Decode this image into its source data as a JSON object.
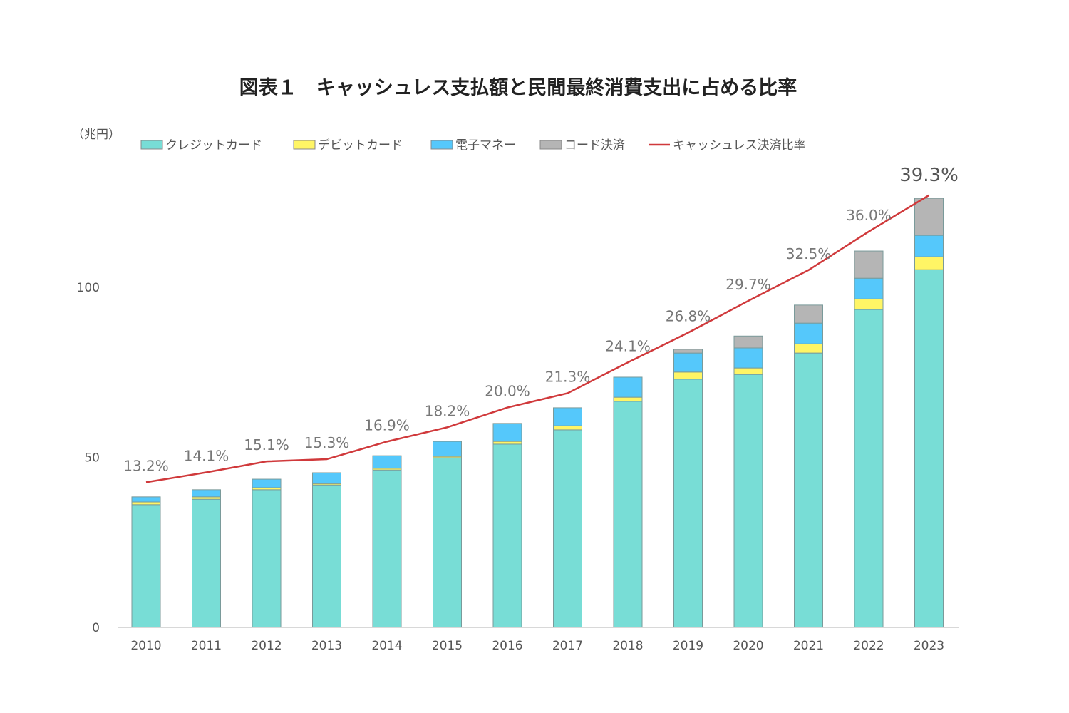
{
  "chart_data": {
    "type": "bar",
    "stacked": true,
    "title": "図表１　キャッシュレス支払額と民間最終消費支出に占める比率",
    "ylabel": "（兆円）",
    "xlabel": "",
    "ylim": [
      0,
      130
    ],
    "yticks": [
      0,
      50,
      100
    ],
    "y2lim": [
      0,
      40.2
    ],
    "grid": false,
    "legend_position": "top",
    "categories": [
      "2010",
      "2011",
      "2012",
      "2013",
      "2014",
      "2015",
      "2016",
      "2017",
      "2018",
      "2019",
      "2020",
      "2021",
      "2022",
      "2023"
    ],
    "series": [
      {
        "name": "クレジットカード",
        "type": "bar",
        "color": "#78ddd6",
        "values": [
          36.1,
          37.7,
          40.5,
          41.9,
          46.3,
          49.9,
          53.9,
          58.1,
          66.5,
          73.0,
          74.4,
          80.7,
          93.5,
          105.2
        ]
      },
      {
        "name": "デビットカード",
        "type": "bar",
        "color": "#fff565",
        "values": [
          0.8,
          0.7,
          0.6,
          0.4,
          0.5,
          0.4,
          0.8,
          1.2,
          1.2,
          2.1,
          1.9,
          2.7,
          3.1,
          3.8
        ]
      },
      {
        "name": "電子マネー",
        "type": "bar",
        "color": "#55c8fb",
        "values": [
          1.5,
          2.1,
          2.5,
          3.2,
          3.7,
          4.4,
          5.3,
          5.3,
          5.9,
          5.6,
          5.9,
          6.1,
          6.1,
          6.3
        ]
      },
      {
        "name": "コード決済",
        "type": "bar",
        "color": "#b5b5b5",
        "values": [
          0,
          0,
          0,
          0,
          0,
          0,
          0,
          0,
          0,
          1.1,
          3.5,
          5.3,
          8.0,
          10.9
        ]
      },
      {
        "name": "キャッシュレス決済比率",
        "type": "line",
        "axis": "secondary",
        "color": "#d0393b",
        "values": [
          13.2,
          14.1,
          15.1,
          15.3,
          16.9,
          18.2,
          20.0,
          21.3,
          24.1,
          26.8,
          29.7,
          32.5,
          36.0,
          39.3
        ],
        "labels": [
          "13.2%",
          "14.1%",
          "15.1%",
          "15.3%",
          "16.9%",
          "18.2%",
          "20.0%",
          "21.3%",
          "24.1%",
          "26.8%",
          "29.7%",
          "32.5%",
          "36.0%",
          "39.3%"
        ]
      }
    ]
  }
}
